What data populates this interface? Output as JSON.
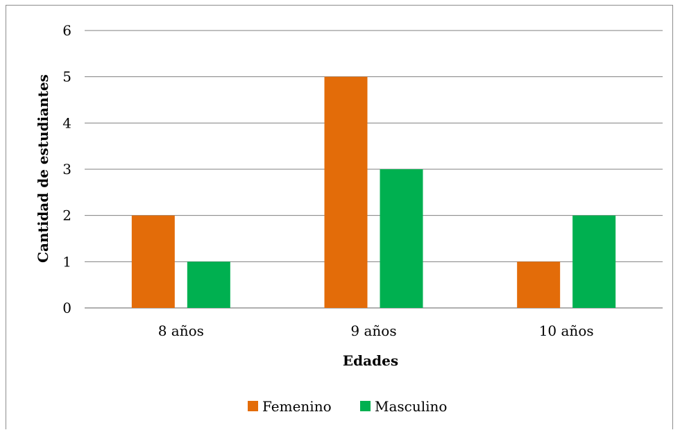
{
  "chart_data": {
    "type": "bar",
    "categories": [
      "8 años",
      "9 años",
      "10 años"
    ],
    "series": [
      {
        "name": "Femenino",
        "values": [
          2,
          5,
          1
        ],
        "color": "#E36C09"
      },
      {
        "name": "Masculino",
        "values": [
          1,
          3,
          2
        ],
        "color": "#00B050"
      }
    ],
    "xlabel": "Edades",
    "ylabel": "Cantidad de estudiantes",
    "ylim": [
      0,
      6
    ],
    "yticks": [
      "0",
      "1",
      "2",
      "3",
      "4",
      "5",
      "6"
    ],
    "grid": true,
    "legend_position": "bottom",
    "gridline_color": "#7f7f7f"
  }
}
